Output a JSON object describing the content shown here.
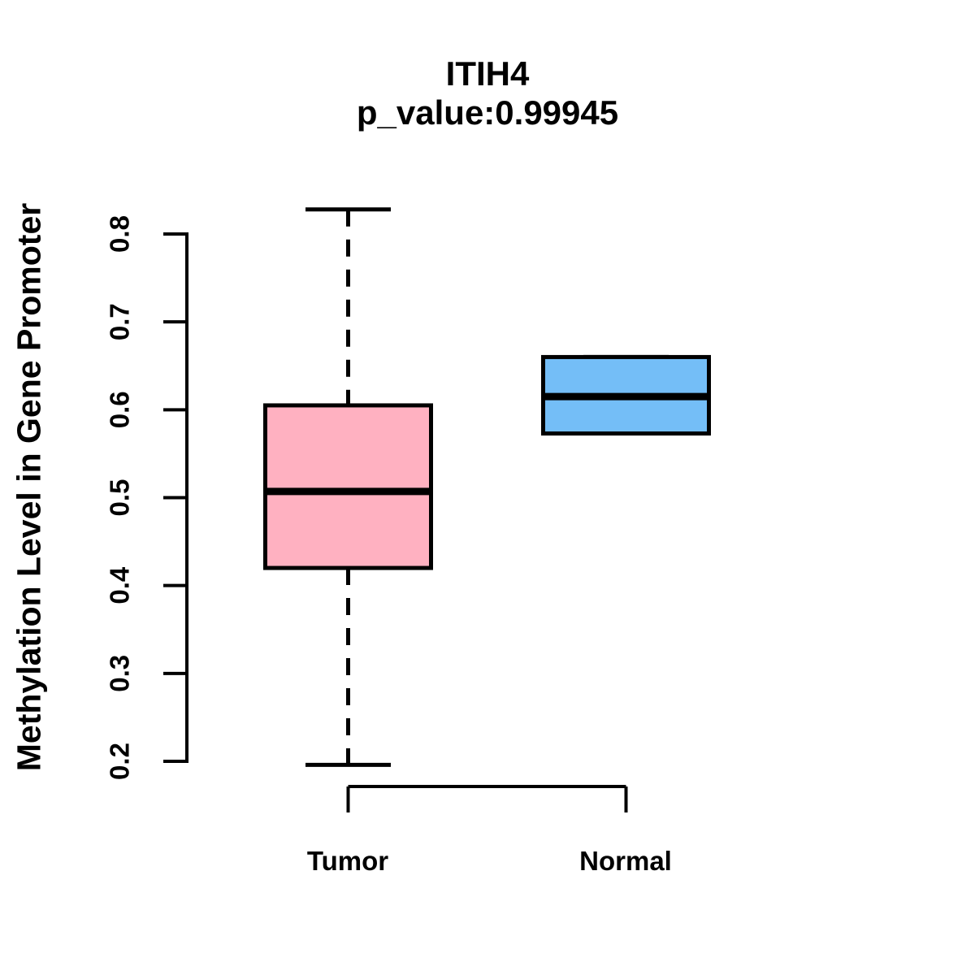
{
  "chart_data": {
    "type": "boxplot",
    "title": "ITIH4",
    "subtitle": "p_value:0.99945",
    "p_value": 0.99945,
    "gene": "ITIH4",
    "ylabel": "Methylation Level in Gene Promoter",
    "xlabel": "",
    "categories": [
      "Tumor",
      "Normal"
    ],
    "yticks": [
      0.2,
      0.3,
      0.4,
      0.5,
      0.6,
      0.7,
      0.8
    ],
    "ylim": [
      0.2,
      0.83
    ],
    "grid": false,
    "legend": "none",
    "series": [
      {
        "name": "Tumor",
        "fill_color": "#FFB1C1",
        "whisker_low": 0.196,
        "q1": 0.42,
        "median": 0.507,
        "q3": 0.605,
        "whisker_high": 0.828
      },
      {
        "name": "Normal",
        "fill_color": "#74BEF7",
        "whisker_low": 0.573,
        "q1": 0.573,
        "median": 0.615,
        "q3": 0.66,
        "whisker_high": 0.66
      }
    ],
    "line_color": "#000000",
    "background_color": "#ffffff"
  }
}
